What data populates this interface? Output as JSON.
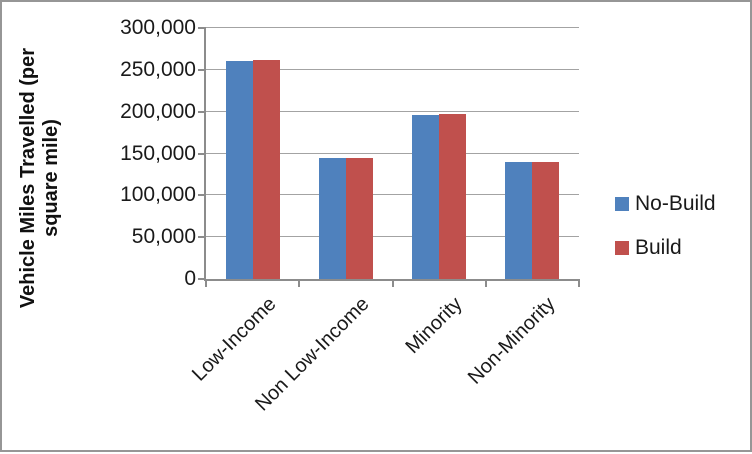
{
  "chart_data": {
    "type": "bar",
    "title": "",
    "categories": [
      "Low-Income",
      "Non Low-Income",
      "Minority",
      "Non-Minority"
    ],
    "series": [
      {
        "name": "No-Build",
        "color": "#4F81BD",
        "values": [
          261000,
          145000,
          196000,
          140000
        ]
      },
      {
        "name": "Build",
        "color": "#C0504D",
        "values": [
          262000,
          144500,
          197000,
          140000
        ]
      }
    ],
    "ylabel": "Vehicle Miles Travelled (per square mile)",
    "xlabel": "",
    "ylim": [
      0,
      300000
    ],
    "ytick_step": 50000,
    "yticks": [
      "300,000",
      "250,000",
      "200,000",
      "150,000",
      "100,000",
      "50,000",
      "0"
    ],
    "grid": true,
    "legend_position": "right",
    "colors": {
      "gridline": "#A3A3A3",
      "axis": "#8C8C8C",
      "chart_border": "#969696",
      "text": "#1A1A1A"
    }
  }
}
